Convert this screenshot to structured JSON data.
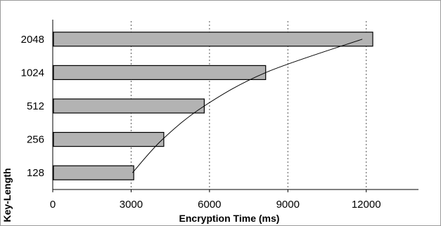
{
  "chart_data": {
    "type": "bar",
    "orientation": "horizontal",
    "categories": [
      "128",
      "256",
      "512",
      "1024",
      "2048"
    ],
    "values": [
      3100,
      4250,
      5800,
      8150,
      12250
    ],
    "xlabel": "Encryption Time (ms)",
    "ylabel": "Key-Length",
    "xlim": [
      0,
      14000
    ],
    "xticks": [
      "0",
      "3000",
      "6000",
      "9000",
      "12000"
    ],
    "grid": "vertical-dashed",
    "trendline": {
      "type": "curve",
      "x": [
        3050,
        4200,
        5800,
        8150,
        11850
      ],
      "y": [
        "128",
        "256",
        "512",
        "1024",
        "2048"
      ]
    },
    "colors": {
      "bar_fill": "#b3b3b3",
      "bar_stroke": "#000000",
      "grid": "#555555"
    }
  }
}
